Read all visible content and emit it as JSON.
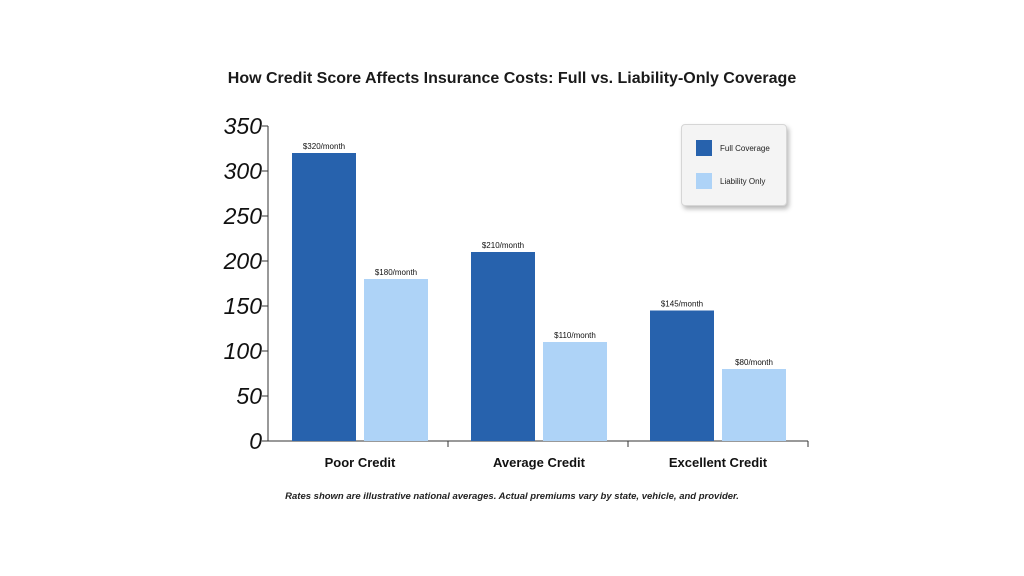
{
  "chart_data": {
    "type": "bar",
    "title": "How Credit Score Affects Insurance Costs: Full vs. Liability-Only Coverage",
    "categories": [
      "Poor Credit",
      "Average Credit",
      "Excellent Credit"
    ],
    "series": [
      {
        "name": "Full Coverage",
        "color": "#2762ad",
        "values": [
          320,
          210,
          145
        ],
        "labels": [
          "$320/month",
          "$210/month",
          "$145/month"
        ]
      },
      {
        "name": "Liability Only",
        "color": "#aed3f7",
        "values": [
          180,
          110,
          80
        ],
        "labels": [
          "$180/month",
          "$110/month",
          "$80/month"
        ]
      }
    ],
    "ylim": [
      0,
      350
    ],
    "yticks": [
      "0",
      "50",
      "100",
      "150",
      "200",
      "250",
      "300",
      "350"
    ],
    "xlabel": "",
    "ylabel": "",
    "grid": false,
    "legend_position": "top-right"
  },
  "footnote": "Rates shown are illustrative national averages. Actual premiums vary by state, vehicle, and provider."
}
